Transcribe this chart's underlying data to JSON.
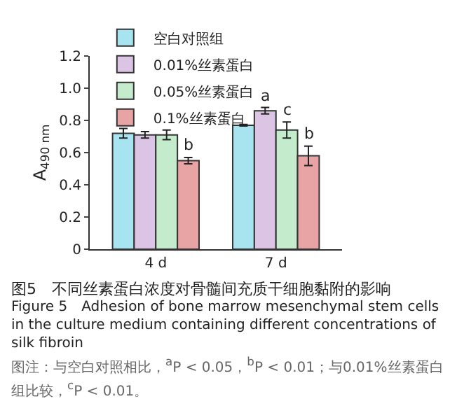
{
  "chart_data": {
    "type": "bar",
    "title": "图5　不同丝素蛋白浓度对骨髓间充质干细胞黏附的影响",
    "subtitle": "Figure 5　Adhesion of bone marrow mesenchymal stem cells in the culture medium containing different concentrations of silk fibroin",
    "annotations": [
      "图注：与空白对照相比，$^{a}$P < 0.05，$^{b}$P < 0.01；与0.01%丝素蛋白组比较，$^{c}$P < 0.01。"
    ],
    "ylabel": "A$_{490 nm}$",
    "categories": [
      "4 d",
      "7 d"
    ],
    "series": [
      {
        "name": "空白对照组",
        "color": "#a8e4f0",
        "values": [
          0.72,
          0.77
        ],
        "errors": [
          0.03,
          0.005
        ]
      },
      {
        "name": "0.01%丝素蛋白",
        "color": "#dcc4e4",
        "values": [
          0.71,
          0.86
        ],
        "errors": [
          0.02,
          0.02
        ],
        "value_labels": [
          null,
          "a"
        ]
      },
      {
        "name": "0.05%丝素蛋白",
        "color": "#c4eccc",
        "values": [
          0.71,
          0.74
        ],
        "errors": [
          0.03,
          0.05
        ],
        "value_labels": [
          null,
          "c"
        ]
      },
      {
        "name": "0.1%丝素蛋白",
        "color": "#e8a4a4",
        "values": [
          0.55,
          0.58
        ],
        "errors": [
          0.02,
          0.06
        ],
        "value_labels": [
          "b",
          "b"
        ]
      }
    ],
    "ylim": [
      0,
      1.2
    ],
    "yticks": [
      0,
      0.2,
      0.4,
      0.6,
      0.8,
      {
        "value": 1,
        "label": "1.0"
      },
      1.2
    ],
    "grid": false,
    "legend": "top left"
  }
}
